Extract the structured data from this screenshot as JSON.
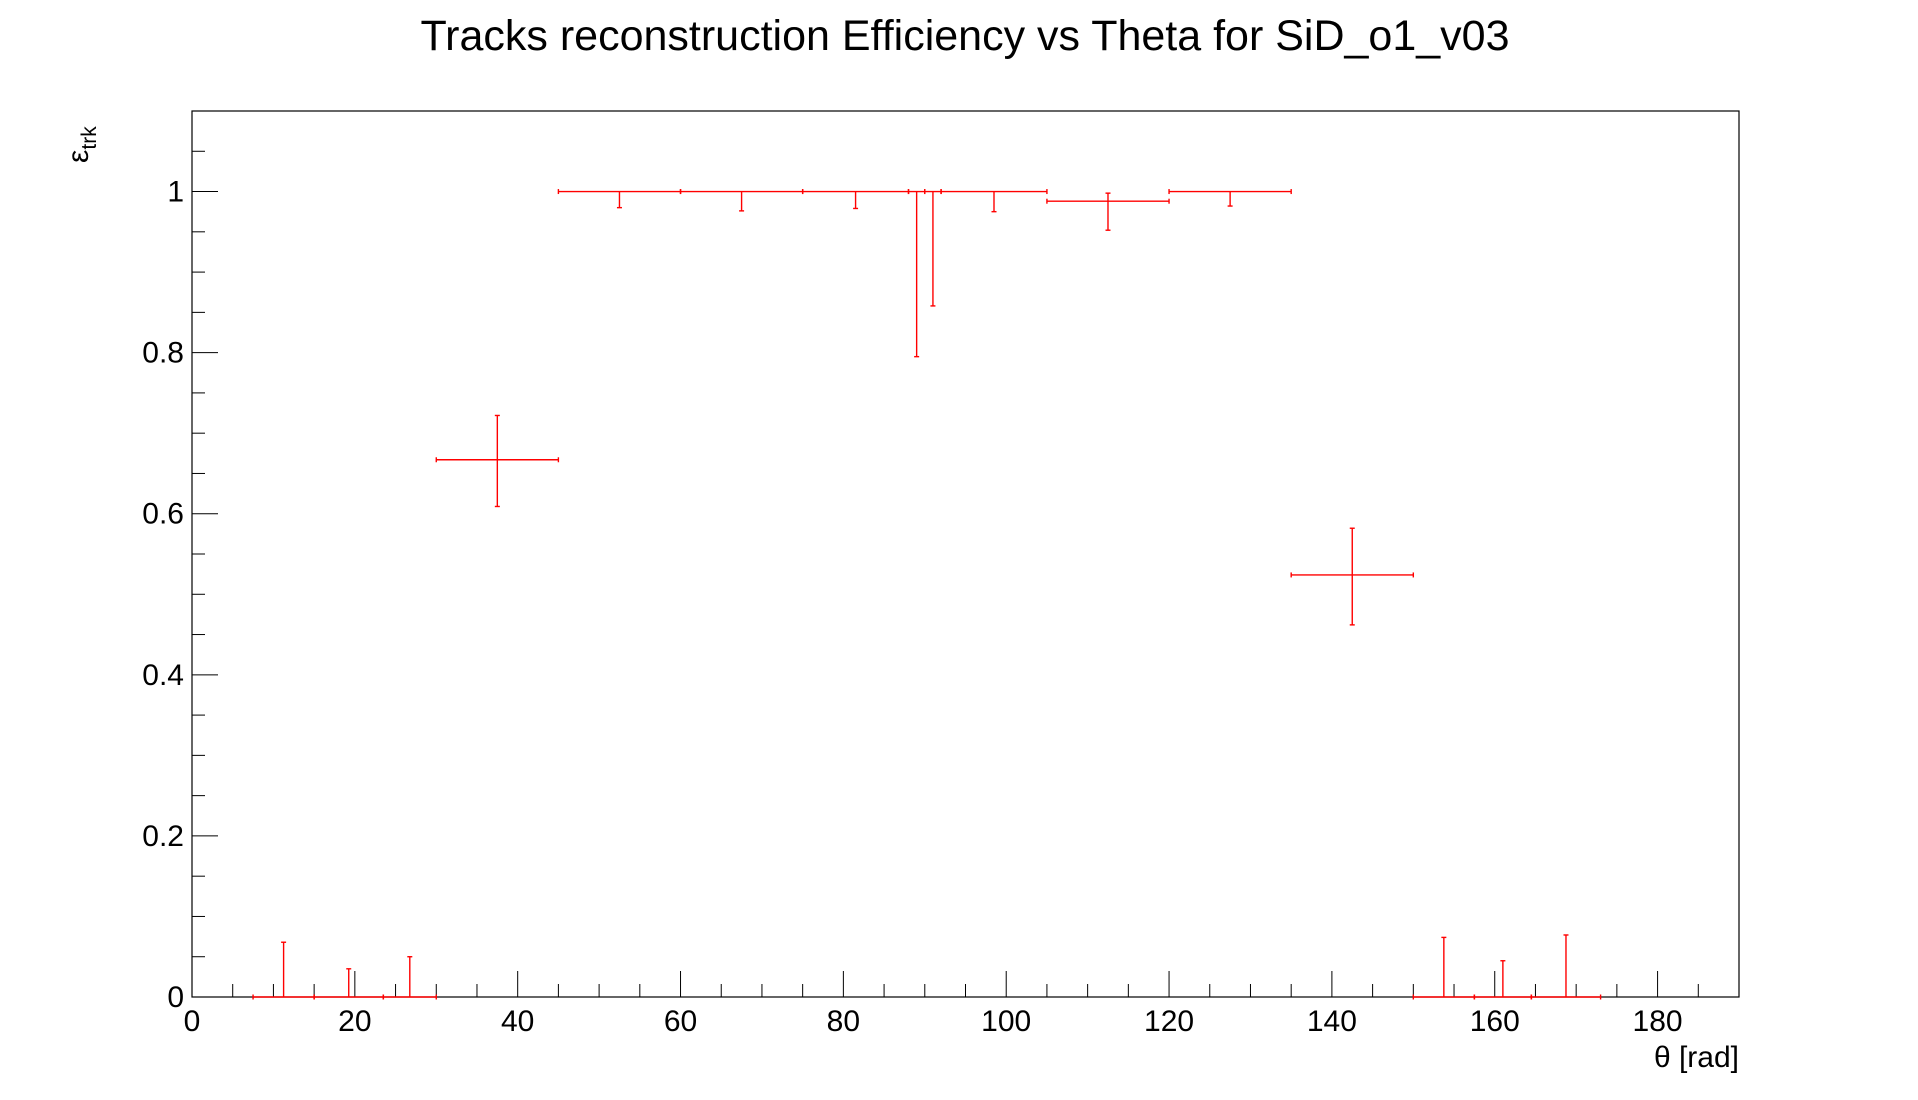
{
  "chart_data": {
    "type": "scatter",
    "title": "Tracks reconstruction Efficiency vs Theta for SiD_o1_v03",
    "xlabel": "θ [rad]",
    "ylabel": "ε",
    "ylabel_subscript": "trk",
    "xlim": [
      0,
      190
    ],
    "ylim": [
      0,
      1.1
    ],
    "grid": false,
    "legend": "none",
    "x_ticks": [
      0,
      20,
      40,
      60,
      80,
      100,
      120,
      140,
      160,
      180
    ],
    "y_ticks": [
      0,
      0.2,
      0.4,
      0.6,
      0.8,
      1
    ],
    "x_tick_labels": [
      "0",
      "20",
      "40",
      "60",
      "80",
      "100",
      "120",
      "140",
      "160",
      "180"
    ],
    "y_tick_labels": [
      "0",
      "0.2",
      "0.4",
      "0.6",
      "0.8",
      "1"
    ],
    "marker_color": "#ff0000",
    "series": [
      {
        "points": [
          {
            "x": 11.25,
            "xerr": 3.75,
            "y": 0,
            "yerr_low": 0,
            "yerr_high": 0.068
          },
          {
            "x": 19.25,
            "xerr": 4.25,
            "y": 0,
            "yerr_low": 0,
            "yerr_high": 0.035
          },
          {
            "x": 26.75,
            "xerr": 3.25,
            "y": 0,
            "yerr_low": 0,
            "yerr_high": 0.05
          },
          {
            "x": 37.5,
            "xerr": 7.5,
            "y": 0.667,
            "yerr_low": 0.058,
            "yerr_high": 0.055
          },
          {
            "x": 52.5,
            "xerr": 7.5,
            "y": 1.0,
            "yerr_low": 0.02,
            "yerr_high": 0
          },
          {
            "x": 67.5,
            "xerr": 7.5,
            "y": 1.0,
            "yerr_low": 0.024,
            "yerr_high": 0
          },
          {
            "x": 81.5,
            "xerr": 6.5,
            "y": 1.0,
            "yerr_low": 0.021,
            "yerr_high": 0
          },
          {
            "x": 89.0,
            "xerr": 1.0,
            "y": 1.0,
            "yerr_low": 0.205,
            "yerr_high": 0
          },
          {
            "x": 91.0,
            "xerr": 1.0,
            "y": 1.0,
            "yerr_low": 0.142,
            "yerr_high": 0
          },
          {
            "x": 98.5,
            "xerr": 6.5,
            "y": 1.0,
            "yerr_low": 0.025,
            "yerr_high": 0
          },
          {
            "x": 112.5,
            "xerr": 7.5,
            "y": 0.988,
            "yerr_low": 0.036,
            "yerr_high": 0.01
          },
          {
            "x": 127.5,
            "xerr": 7.5,
            "y": 1.0,
            "yerr_low": 0.018,
            "yerr_high": 0
          },
          {
            "x": 142.5,
            "xerr": 7.5,
            "y": 0.524,
            "yerr_low": 0.062,
            "yerr_high": 0.058
          },
          {
            "x": 153.75,
            "xerr": 3.75,
            "y": 0,
            "yerr_low": 0,
            "yerr_high": 0.074
          },
          {
            "x": 161.0,
            "xerr": 3.5,
            "y": 0,
            "yerr_low": 0,
            "yerr_high": 0.045
          },
          {
            "x": 168.75,
            "xerr": 4.25,
            "y": 0,
            "yerr_low": 0,
            "yerr_high": 0.077
          }
        ]
      }
    ]
  }
}
